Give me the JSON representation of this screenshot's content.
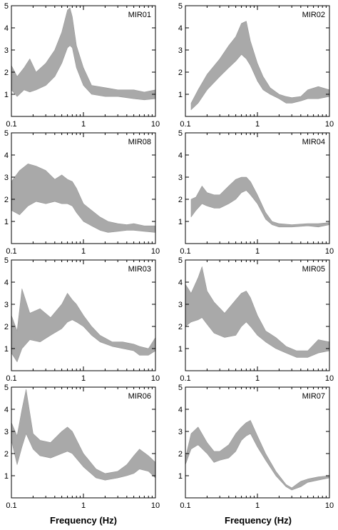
{
  "chart_data": [
    {
      "type": "area",
      "label": "MIR01",
      "xlabel": "Frequency (Hz)",
      "xscale": "log",
      "xlim": [
        0.1,
        10
      ],
      "ylim": [
        0,
        5
      ],
      "yticks": [
        "1",
        "2",
        "3",
        "4",
        "5"
      ],
      "xticks": [
        "0.1",
        "1",
        "10"
      ],
      "x": [
        0.1,
        0.12,
        0.15,
        0.18,
        0.22,
        0.3,
        0.4,
        0.5,
        0.6,
        0.65,
        0.7,
        0.8,
        1.0,
        1.3,
        2,
        3,
        5,
        7,
        10
      ],
      "lower": [
        1.2,
        0.9,
        1.2,
        1.1,
        1.2,
        1.4,
        1.8,
        2.4,
        3.1,
        3.2,
        3.1,
        2.2,
        1.4,
        1.0,
        0.9,
        0.9,
        0.8,
        0.75,
        0.8
      ],
      "upper": [
        2.3,
        1.8,
        2.2,
        2.6,
        2.0,
        2.4,
        3.0,
        3.8,
        4.8,
        4.9,
        4.5,
        3.2,
        2.2,
        1.4,
        1.3,
        1.2,
        1.2,
        1.1,
        1.2
      ],
      "fill": "#a9a9a9"
    },
    {
      "type": "area",
      "label": "MIR02",
      "xlabel": "Frequency (Hz)",
      "xscale": "log",
      "xlim": [
        0.1,
        10
      ],
      "ylim": [
        0,
        5
      ],
      "yticks": [
        "1",
        "2",
        "3",
        "4",
        "5"
      ],
      "xticks": [
        "0.1",
        "1",
        "10"
      ],
      "x": [
        0.12,
        0.15,
        0.2,
        0.3,
        0.4,
        0.5,
        0.6,
        0.7,
        0.8,
        1.0,
        1.2,
        1.5,
        2,
        2.5,
        3,
        4,
        5,
        7,
        10
      ],
      "lower": [
        0.3,
        0.6,
        1.2,
        1.8,
        2.2,
        2.5,
        2.8,
        2.6,
        2.3,
        1.6,
        1.2,
        1.0,
        0.8,
        0.6,
        0.6,
        0.7,
        0.8,
        0.8,
        0.9
      ],
      "upper": [
        0.6,
        1.2,
        1.9,
        2.6,
        3.2,
        3.6,
        4.2,
        4.3,
        3.4,
        2.4,
        1.8,
        1.3,
        1.0,
        0.9,
        0.85,
        0.9,
        1.2,
        1.35,
        1.2
      ],
      "fill": "#a9a9a9"
    },
    {
      "type": "area",
      "label": "MIR08",
      "xlabel": "Frequency (Hz)",
      "xscale": "log",
      "xlim": [
        0.1,
        10
      ],
      "ylim": [
        0,
        5
      ],
      "yticks": [
        "1",
        "2",
        "3",
        "4",
        "5"
      ],
      "xticks": [
        "0.1",
        "1",
        "10"
      ],
      "x": [
        0.1,
        0.13,
        0.17,
        0.22,
        0.3,
        0.4,
        0.5,
        0.6,
        0.7,
        0.8,
        1.0,
        1.3,
        1.7,
        2.2,
        3,
        4,
        5,
        7,
        10
      ],
      "lower": [
        1.5,
        1.3,
        1.7,
        1.9,
        1.8,
        1.9,
        1.8,
        1.8,
        1.7,
        1.4,
        1.0,
        0.8,
        0.6,
        0.5,
        0.55,
        0.6,
        0.6,
        0.55,
        0.5
      ],
      "upper": [
        2.8,
        3.3,
        3.6,
        3.5,
        3.3,
        2.9,
        3.1,
        2.9,
        2.8,
        2.5,
        1.8,
        1.5,
        1.2,
        1.0,
        0.9,
        0.85,
        0.9,
        0.8,
        0.8
      ],
      "fill": "#a9a9a9"
    },
    {
      "type": "area",
      "label": "MIR04",
      "xlabel": "Frequency (Hz)",
      "xscale": "log",
      "xlim": [
        0.1,
        10
      ],
      "ylim": [
        0,
        5
      ],
      "yticks": [
        "1",
        "2",
        "3",
        "4",
        "5"
      ],
      "xticks": [
        "0.1",
        "1",
        "10"
      ],
      "x": [
        0.12,
        0.14,
        0.17,
        0.2,
        0.25,
        0.3,
        0.4,
        0.5,
        0.6,
        0.7,
        0.8,
        1.0,
        1.3,
        1.6,
        2,
        3,
        5,
        7,
        10
      ],
      "lower": [
        1.2,
        1.5,
        1.8,
        1.7,
        1.6,
        1.6,
        1.8,
        2.0,
        2.3,
        2.4,
        2.2,
        1.8,
        1.1,
        0.85,
        0.75,
        0.75,
        0.8,
        0.75,
        0.85
      ],
      "upper": [
        2.0,
        2.1,
        2.6,
        2.3,
        2.2,
        2.2,
        2.6,
        2.9,
        3.0,
        3.0,
        2.8,
        2.2,
        1.4,
        1.0,
        0.9,
        0.85,
        0.9,
        0.9,
        0.95
      ],
      "fill": "#a9a9a9"
    },
    {
      "type": "area",
      "label": "MIR03",
      "xlabel": "Frequency (Hz)",
      "xscale": "log",
      "xlim": [
        0.1,
        10
      ],
      "ylim": [
        0,
        5
      ],
      "yticks": [
        "1",
        "2",
        "3",
        "4",
        "5"
      ],
      "xticks": [
        "0.1",
        "1",
        "10"
      ],
      "x": [
        0.1,
        0.12,
        0.14,
        0.18,
        0.25,
        0.35,
        0.5,
        0.6,
        0.7,
        0.8,
        1.0,
        1.3,
        1.7,
        2.5,
        3.5,
        5,
        6,
        8,
        10
      ],
      "lower": [
        0.8,
        0.4,
        1.0,
        1.4,
        1.3,
        1.6,
        1.9,
        2.2,
        2.3,
        2.2,
        2.0,
        1.6,
        1.3,
        1.1,
        1.0,
        0.9,
        0.7,
        0.7,
        0.9
      ],
      "upper": [
        2.5,
        1.8,
        3.7,
        2.6,
        2.8,
        2.4,
        3.0,
        3.5,
        3.2,
        3.0,
        2.5,
        2.0,
        1.6,
        1.3,
        1.3,
        1.2,
        1.1,
        1.0,
        1.5
      ],
      "fill": "#a9a9a9"
    },
    {
      "type": "area",
      "label": "MIR05",
      "xlabel": "Frequency (Hz)",
      "xscale": "log",
      "xlim": [
        0.1,
        10
      ],
      "ylim": [
        0,
        5
      ],
      "yticks": [
        "1",
        "2",
        "3",
        "4",
        "5"
      ],
      "xticks": [
        "0.1",
        "1",
        "10"
      ],
      "x": [
        0.1,
        0.12,
        0.15,
        0.17,
        0.2,
        0.25,
        0.35,
        0.5,
        0.6,
        0.7,
        0.8,
        1.0,
        1.3,
        1.8,
        2.5,
        3.5,
        5,
        7,
        10
      ],
      "lower": [
        2.0,
        2.2,
        2.3,
        2.4,
        2.1,
        1.7,
        1.5,
        1.6,
        2.0,
        2.2,
        2.0,
        1.6,
        1.3,
        1.0,
        0.8,
        0.6,
        0.6,
        0.8,
        0.9
      ],
      "upper": [
        3.9,
        3.5,
        4.2,
        4.7,
        3.6,
        3.1,
        2.6,
        3.2,
        3.5,
        3.6,
        3.3,
        2.5,
        1.8,
        1.5,
        1.1,
        0.9,
        0.9,
        1.4,
        1.3
      ],
      "fill": "#a9a9a9"
    },
    {
      "type": "area",
      "label": "MIR06",
      "xlabel": "Frequency (Hz)",
      "xscale": "log",
      "xlim": [
        0.1,
        10
      ],
      "ylim": [
        0,
        5
      ],
      "yticks": [
        "1",
        "2",
        "3",
        "4",
        "5"
      ],
      "xticks": [
        "0.1",
        "1",
        "10"
      ],
      "x": [
        0.1,
        0.12,
        0.14,
        0.16,
        0.2,
        0.25,
        0.35,
        0.5,
        0.6,
        0.7,
        1.0,
        1.5,
        2,
        3,
        4,
        5,
        6,
        8,
        10
      ],
      "lower": [
        2.6,
        1.5,
        2.3,
        2.9,
        2.2,
        1.9,
        1.8,
        2.0,
        2.1,
        2.0,
        1.4,
        0.9,
        0.8,
        0.9,
        1.0,
        1.1,
        1.3,
        1.2,
        0.9
      ],
      "upper": [
        3.4,
        2.8,
        4.0,
        4.9,
        2.9,
        2.6,
        2.5,
        3.0,
        3.2,
        3.0,
        2.0,
        1.3,
        1.1,
        1.2,
        1.5,
        1.9,
        2.2,
        1.9,
        1.6
      ],
      "fill": "#a9a9a9"
    },
    {
      "type": "area",
      "label": "MIR07",
      "xlabel": "Frequency (Hz)",
      "xscale": "log",
      "xlim": [
        0.1,
        10
      ],
      "ylim": [
        0,
        5
      ],
      "yticks": [
        "1",
        "2",
        "3",
        "4",
        "5"
      ],
      "xticks": [
        "0.1",
        "1",
        "10"
      ],
      "x": [
        0.1,
        0.12,
        0.15,
        0.2,
        0.25,
        0.3,
        0.4,
        0.5,
        0.6,
        0.7,
        0.8,
        1.0,
        1.3,
        1.8,
        2.5,
        3,
        4,
        5,
        7,
        10
      ],
      "lower": [
        1.5,
        2.2,
        2.4,
        2.0,
        1.6,
        1.7,
        1.8,
        2.1,
        2.6,
        2.8,
        2.9,
        2.3,
        1.7,
        1.0,
        0.5,
        0.35,
        0.5,
        0.7,
        0.8,
        0.9
      ],
      "upper": [
        1.8,
        2.9,
        3.2,
        2.5,
        2.1,
        2.1,
        2.4,
        2.9,
        3.2,
        3.4,
        3.5,
        2.8,
        2.0,
        1.2,
        0.6,
        0.45,
        0.75,
        0.85,
        0.95,
        1.0
      ],
      "fill": "#a9a9a9"
    }
  ]
}
